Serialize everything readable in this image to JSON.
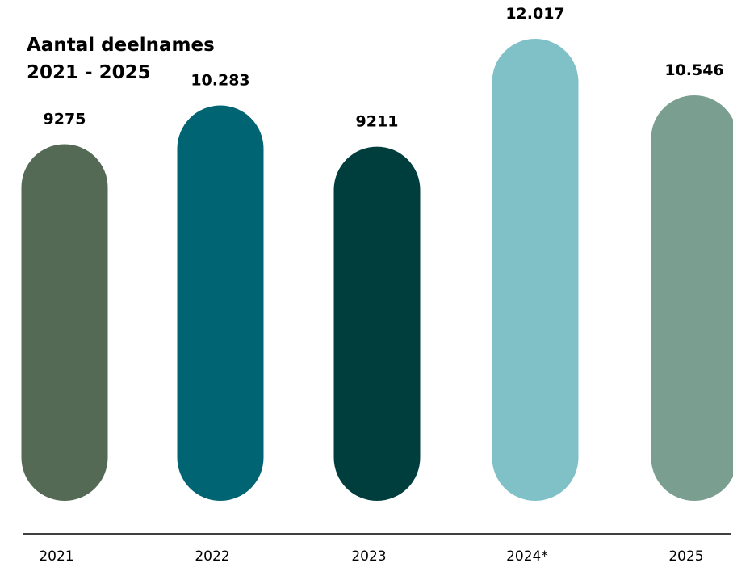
{
  "chart_data": {
    "type": "bar",
    "title": "Aantal deelnames",
    "subtitle": "2021 - 2025",
    "categories": [
      "2021",
      "2022",
      "2023",
      "2024*",
      "2025"
    ],
    "values": [
      9275,
      10283,
      9211,
      12017,
      10546
    ],
    "value_labels": [
      "9275",
      "10.283",
      "9211",
      "12.017",
      "10.546"
    ],
    "colors": [
      "#546a54",
      "#006472",
      "#003e3d",
      "#80c1c7",
      "#7a9e8f"
    ],
    "xlabel": "",
    "ylabel": "",
    "grid": false,
    "legend": "none"
  }
}
